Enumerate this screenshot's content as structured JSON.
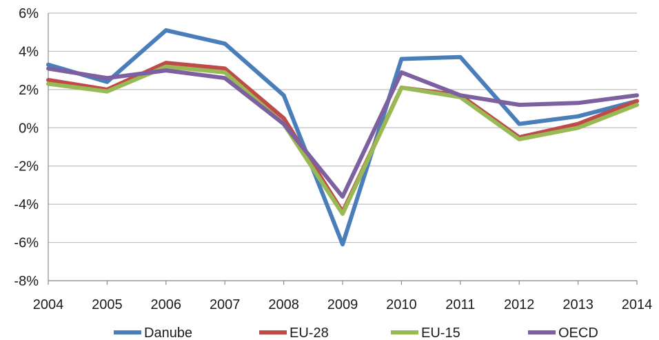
{
  "chart_data": {
    "type": "line",
    "title": "",
    "xlabel": "",
    "ylabel": "",
    "x": [
      "2004",
      "2005",
      "2006",
      "2007",
      "2008",
      "2009",
      "2010",
      "2011",
      "2012",
      "2013",
      "2014"
    ],
    "ylim": [
      -8,
      6
    ],
    "yticks": [
      6,
      4,
      2,
      0,
      -2,
      -4,
      -6,
      -8
    ],
    "ytick_labels": [
      "6%",
      "4%",
      "2%",
      "0%",
      "-2%",
      "-4%",
      "-6%",
      "-8%"
    ],
    "grid": true,
    "legend_position": "bottom",
    "series": [
      {
        "name": "Danube",
        "color": "#4a7ebb",
        "values": [
          3.3,
          2.4,
          5.1,
          4.4,
          1.7,
          -6.1,
          3.6,
          3.7,
          0.2,
          0.6,
          1.4
        ]
      },
      {
        "name": "EU-28",
        "color": "#be4b48",
        "values": [
          2.5,
          2.0,
          3.4,
          3.1,
          0.5,
          -4.4,
          2.1,
          1.7,
          -0.5,
          0.2,
          1.4
        ]
      },
      {
        "name": "EU-15",
        "color": "#98b954",
        "values": [
          2.3,
          1.9,
          3.2,
          2.9,
          0.2,
          -4.5,
          2.1,
          1.6,
          -0.6,
          0.0,
          1.2
        ]
      },
      {
        "name": "OECD",
        "color": "#7d60a0",
        "values": [
          3.1,
          2.6,
          3.0,
          2.6,
          0.2,
          -3.6,
          2.9,
          1.7,
          1.2,
          1.3,
          1.7
        ]
      }
    ]
  }
}
